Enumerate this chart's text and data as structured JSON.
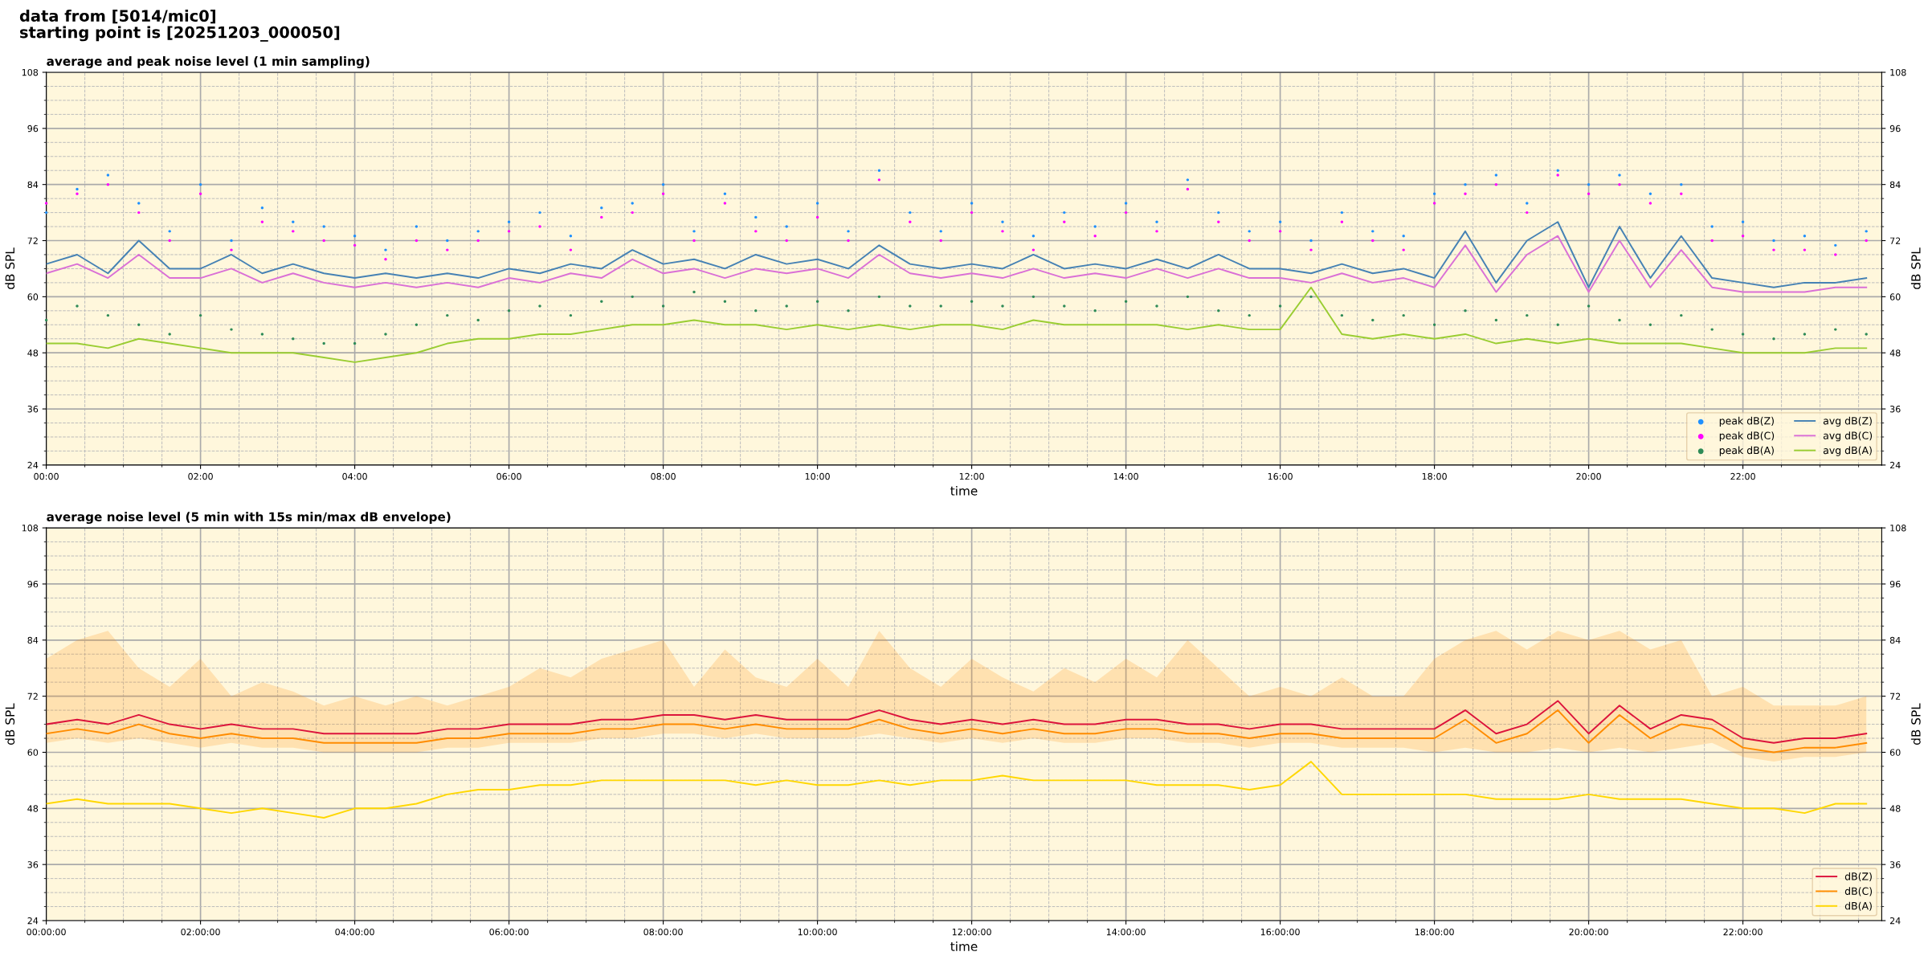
{
  "chart_data": [
    {
      "type": "line",
      "title": "average and peak noise level (1 min sampling)",
      "annotations": [
        "data from [5014/mic0]",
        "starting point is [20251203_000050]"
      ],
      "xlabel": "time",
      "ylabel": "dB SPL",
      "y2label": "dB SPL",
      "grid": true,
      "legend": "bottom right",
      "x": [
        0,
        0.4,
        0.8,
        1.2,
        1.6,
        2.0,
        2.4,
        2.8,
        3.2,
        3.6,
        4.0,
        4.4,
        4.8,
        5.2,
        5.6,
        6.0,
        6.4,
        6.8,
        7.2,
        7.6,
        8.0,
        8.4,
        8.8,
        9.2,
        9.6,
        10.0,
        10.4,
        10.8,
        11.2,
        11.6,
        12.0,
        12.4,
        12.8,
        13.2,
        13.6,
        14.0,
        14.4,
        14.8,
        15.2,
        15.6,
        16.0,
        16.4,
        16.8,
        17.2,
        17.6,
        18.0,
        18.4,
        18.8,
        19.2,
        19.6,
        20.0,
        20.4,
        20.8,
        21.2,
        21.6,
        22.0,
        22.4,
        22.8,
        23.2,
        23.6
      ],
      "xlim": [
        0,
        23.8
      ],
      "xticks": [
        {
          "value": 0,
          "label": "00:00"
        },
        {
          "value": 0.5,
          "label": null
        },
        {
          "value": 1,
          "label": null
        },
        {
          "value": 1.5,
          "label": null
        },
        {
          "value": 2,
          "label": "02:00"
        },
        {
          "value": 2.5,
          "label": null
        },
        {
          "value": 3,
          "label": null
        },
        {
          "value": 3.5,
          "label": null
        },
        {
          "value": 4,
          "label": "04:00"
        },
        {
          "value": 4.5,
          "label": null
        },
        {
          "value": 5,
          "label": null
        },
        {
          "value": 5.5,
          "label": null
        },
        {
          "value": 6,
          "label": "06:00"
        },
        {
          "value": 6.5,
          "label": null
        },
        {
          "value": 7,
          "label": null
        },
        {
          "value": 7.5,
          "label": null
        },
        {
          "value": 8,
          "label": "08:00"
        },
        {
          "value": 8.5,
          "label": null
        },
        {
          "value": 9,
          "label": null
        },
        {
          "value": 9.5,
          "label": null
        },
        {
          "value": 10,
          "label": "10:00"
        },
        {
          "value": 10.5,
          "label": null
        },
        {
          "value": 11,
          "label": null
        },
        {
          "value": 11.5,
          "label": null
        },
        {
          "value": 12,
          "label": "12:00"
        },
        {
          "value": 12.5,
          "label": null
        },
        {
          "value": 13,
          "label": null
        },
        {
          "value": 13.5,
          "label": null
        },
        {
          "value": 14,
          "label": "14:00"
        },
        {
          "value": 14.5,
          "label": null
        },
        {
          "value": 15,
          "label": null
        },
        {
          "value": 15.5,
          "label": null
        },
        {
          "value": 16,
          "label": "16:00"
        },
        {
          "value": 16.5,
          "label": null
        },
        {
          "value": 17,
          "label": null
        },
        {
          "value": 17.5,
          "label": null
        },
        {
          "value": 18,
          "label": "18:00"
        },
        {
          "value": 18.5,
          "label": null
        },
        {
          "value": 19,
          "label": null
        },
        {
          "value": 19.5,
          "label": null
        },
        {
          "value": 20,
          "label": "20:00"
        },
        {
          "value": 20.5,
          "label": null
        },
        {
          "value": 21,
          "label": null
        },
        {
          "value": 21.5,
          "label": null
        },
        {
          "value": 22,
          "label": "22:00"
        },
        {
          "value": 22.5,
          "label": null
        },
        {
          "value": 23,
          "label": null
        },
        {
          "value": 23.5,
          "label": null
        }
      ],
      "ylim": [
        24,
        108
      ],
      "yticks": [
        24,
        {
          "value": 27,
          "label": null
        },
        {
          "value": 30,
          "label": null
        },
        {
          "value": 33,
          "label": null
        },
        36,
        {
          "value": 39,
          "label": null
        },
        {
          "value": 42,
          "label": null
        },
        {
          "value": 45,
          "label": null
        },
        48,
        {
          "value": 51,
          "label": null
        },
        {
          "value": 54,
          "label": null
        },
        {
          "value": 57,
          "label": null
        },
        60,
        {
          "value": 63,
          "label": null
        },
        {
          "value": 66,
          "label": null
        },
        {
          "value": 69,
          "label": null
        },
        72,
        {
          "value": 75,
          "label": null
        },
        {
          "value": 78,
          "label": null
        },
        {
          "value": 81,
          "label": null
        },
        84,
        {
          "value": 87,
          "label": null
        },
        {
          "value": 90,
          "label": null
        },
        {
          "value": 93,
          "label": null
        },
        96,
        {
          "value": 99,
          "label": null
        },
        {
          "value": 102,
          "label": null
        },
        {
          "value": 105,
          "label": null
        },
        108
      ],
      "y2lim": [
        24,
        108
      ],
      "y2ticks": [
        24,
        {
          "value": 27,
          "label": null
        },
        {
          "value": 30,
          "label": null
        },
        {
          "value": 33,
          "label": null
        },
        36,
        {
          "value": 39,
          "label": null
        },
        {
          "value": 42,
          "label": null
        },
        {
          "value": 45,
          "label": null
        },
        48,
        {
          "value": 51,
          "label": null
        },
        {
          "value": 54,
          "label": null
        },
        {
          "value": 57,
          "label": null
        },
        60,
        {
          "value": 63,
          "label": null
        },
        {
          "value": 66,
          "label": null
        },
        {
          "value": 69,
          "label": null
        },
        72,
        {
          "value": 75,
          "label": null
        },
        {
          "value": 78,
          "label": null
        },
        {
          "value": 81,
          "label": null
        },
        84,
        {
          "value": 87,
          "label": null
        },
        {
          "value": 90,
          "label": null
        },
        {
          "value": 93,
          "label": null
        },
        96,
        {
          "value": 99,
          "label": null
        },
        {
          "value": 102,
          "label": null
        },
        {
          "value": 105,
          "label": null
        },
        108
      ],
      "series": [
        {
          "name": "peak dB(Z)",
          "type": "scatter",
          "marker": "circle",
          "color": "#1e90ff",
          "values": [
            78,
            83,
            86,
            80,
            74,
            84,
            72,
            79,
            76,
            75,
            73,
            70,
            75,
            72,
            74,
            76,
            78,
            73,
            79,
            80,
            84,
            74,
            82,
            77,
            75,
            80,
            74,
            87,
            78,
            74,
            80,
            76,
            73,
            78,
            75,
            80,
            76,
            85,
            78,
            74,
            76,
            72,
            78,
            74,
            73,
            82,
            84,
            86,
            80,
            87,
            84,
            86,
            82,
            84,
            75,
            76,
            72,
            73,
            71,
            74
          ]
        },
        {
          "name": "peak dB(C)",
          "type": "scatter",
          "marker": "circle",
          "color": "#ff00ff",
          "values": [
            80,
            82,
            84,
            78,
            72,
            82,
            70,
            76,
            74,
            72,
            71,
            68,
            72,
            70,
            72,
            74,
            75,
            70,
            77,
            78,
            82,
            72,
            80,
            74,
            72,
            77,
            72,
            85,
            76,
            72,
            78,
            74,
            70,
            76,
            73,
            78,
            74,
            83,
            76,
            72,
            74,
            70,
            76,
            72,
            70,
            80,
            82,
            84,
            78,
            86,
            82,
            84,
            80,
            82,
            72,
            73,
            70,
            70,
            69,
            72
          ]
        },
        {
          "name": "peak dB(A)",
          "type": "scatter",
          "marker": "circle",
          "color": "#2e8b57",
          "values": [
            55,
            58,
            56,
            54,
            52,
            56,
            53,
            52,
            51,
            50,
            50,
            52,
            54,
            56,
            55,
            57,
            58,
            56,
            59,
            60,
            58,
            61,
            59,
            57,
            58,
            59,
            57,
            60,
            58,
            58,
            59,
            58,
            60,
            58,
            57,
            59,
            58,
            60,
            57,
            56,
            58,
            60,
            56,
            55,
            56,
            54,
            57,
            55,
            56,
            54,
            58,
            55,
            54,
            56,
            53,
            52,
            51,
            52,
            53,
            52
          ]
        },
        {
          "name": "avg dB(Z)",
          "color": "#4682b4",
          "values": [
            67,
            69,
            65,
            72,
            66,
            66,
            69,
            65,
            67,
            65,
            64,
            65,
            64,
            65,
            64,
            66,
            65,
            67,
            66,
            70,
            67,
            68,
            66,
            69,
            67,
            68,
            66,
            71,
            67,
            66,
            67,
            66,
            69,
            66,
            67,
            66,
            68,
            66,
            69,
            66,
            66,
            65,
            67,
            65,
            66,
            64,
            74,
            63,
            72,
            76,
            62,
            75,
            64,
            73,
            64,
            63,
            62,
            63,
            63,
            64
          ]
        },
        {
          "name": "avg dB(C)",
          "color": "#da70d6",
          "values": [
            65,
            67,
            64,
            69,
            64,
            64,
            66,
            63,
            65,
            63,
            62,
            63,
            62,
            63,
            62,
            64,
            63,
            65,
            64,
            68,
            65,
            66,
            64,
            66,
            65,
            66,
            64,
            69,
            65,
            64,
            65,
            64,
            66,
            64,
            65,
            64,
            66,
            64,
            66,
            64,
            64,
            63,
            65,
            63,
            64,
            62,
            71,
            61,
            69,
            73,
            61,
            72,
            62,
            70,
            62,
            61,
            61,
            61,
            62,
            62
          ]
        },
        {
          "name": "avg dB(A)",
          "color": "#9acd32",
          "values": [
            50,
            50,
            49,
            51,
            50,
            49,
            48,
            48,
            48,
            47,
            46,
            47,
            48,
            50,
            51,
            51,
            52,
            52,
            53,
            54,
            54,
            55,
            54,
            54,
            53,
            54,
            53,
            54,
            53,
            54,
            54,
            53,
            55,
            54,
            54,
            54,
            54,
            53,
            54,
            53,
            53,
            62,
            52,
            51,
            52,
            51,
            52,
            50,
            51,
            50,
            51,
            50,
            50,
            50,
            49,
            48,
            48,
            48,
            49,
            49
          ]
        }
      ]
    },
    {
      "type": "line",
      "title": "average noise level (5 min with 15s min/max dB envelope)",
      "xlabel": "time",
      "ylabel": "dB SPL",
      "y2label": "dB SPL",
      "grid": true,
      "legend": "bottom right",
      "x": [
        0,
        0.4,
        0.8,
        1.2,
        1.6,
        2.0,
        2.4,
        2.8,
        3.2,
        3.6,
        4.0,
        4.4,
        4.8,
        5.2,
        5.6,
        6.0,
        6.4,
        6.8,
        7.2,
        7.6,
        8.0,
        8.4,
        8.8,
        9.2,
        9.6,
        10.0,
        10.4,
        10.8,
        11.2,
        11.6,
        12.0,
        12.4,
        12.8,
        13.2,
        13.6,
        14.0,
        14.4,
        14.8,
        15.2,
        15.6,
        16.0,
        16.4,
        16.8,
        17.2,
        17.6,
        18.0,
        18.4,
        18.8,
        19.2,
        19.6,
        20.0,
        20.4,
        20.8,
        21.2,
        21.6,
        22.0,
        22.4,
        22.8,
        23.2,
        23.6
      ],
      "xlim": [
        0,
        23.8
      ],
      "xticks": [
        {
          "value": 0,
          "label": "00:00:00"
        },
        {
          "value": 0.5,
          "label": null
        },
        {
          "value": 1,
          "label": null
        },
        {
          "value": 1.5,
          "label": null
        },
        {
          "value": 2,
          "label": "02:00:00"
        },
        {
          "value": 2.5,
          "label": null
        },
        {
          "value": 3,
          "label": null
        },
        {
          "value": 3.5,
          "label": null
        },
        {
          "value": 4,
          "label": "04:00:00"
        },
        {
          "value": 4.5,
          "label": null
        },
        {
          "value": 5,
          "label": null
        },
        {
          "value": 5.5,
          "label": null
        },
        {
          "value": 6,
          "label": "06:00:00"
        },
        {
          "value": 6.5,
          "label": null
        },
        {
          "value": 7,
          "label": null
        },
        {
          "value": 7.5,
          "label": null
        },
        {
          "value": 8,
          "label": "08:00:00"
        },
        {
          "value": 8.5,
          "label": null
        },
        {
          "value": 9,
          "label": null
        },
        {
          "value": 9.5,
          "label": null
        },
        {
          "value": 10,
          "label": "10:00:00"
        },
        {
          "value": 10.5,
          "label": null
        },
        {
          "value": 11,
          "label": null
        },
        {
          "value": 11.5,
          "label": null
        },
        {
          "value": 12,
          "label": "12:00:00"
        },
        {
          "value": 12.5,
          "label": null
        },
        {
          "value": 13,
          "label": null
        },
        {
          "value": 13.5,
          "label": null
        },
        {
          "value": 14,
          "label": "14:00:00"
        },
        {
          "value": 14.5,
          "label": null
        },
        {
          "value": 15,
          "label": null
        },
        {
          "value": 15.5,
          "label": null
        },
        {
          "value": 16,
          "label": "16:00:00"
        },
        {
          "value": 16.5,
          "label": null
        },
        {
          "value": 17,
          "label": null
        },
        {
          "value": 17.5,
          "label": null
        },
        {
          "value": 18,
          "label": "18:00:00"
        },
        {
          "value": 18.5,
          "label": null
        },
        {
          "value": 19,
          "label": null
        },
        {
          "value": 19.5,
          "label": null
        },
        {
          "value": 20,
          "label": "20:00:00"
        },
        {
          "value": 20.5,
          "label": null
        },
        {
          "value": 21,
          "label": null
        },
        {
          "value": 21.5,
          "label": null
        },
        {
          "value": 22,
          "label": "22:00:00"
        },
        {
          "value": 22.5,
          "label": null
        },
        {
          "value": 23,
          "label": null
        },
        {
          "value": 23.5,
          "label": null
        }
      ],
      "ylim": [
        24,
        108
      ],
      "yticks": [
        24,
        {
          "value": 27,
          "label": null
        },
        {
          "value": 30,
          "label": null
        },
        {
          "value": 33,
          "label": null
        },
        36,
        {
          "value": 39,
          "label": null
        },
        {
          "value": 42,
          "label": null
        },
        {
          "value": 45,
          "label": null
        },
        48,
        {
          "value": 51,
          "label": null
        },
        {
          "value": 54,
          "label": null
        },
        {
          "value": 57,
          "label": null
        },
        60,
        {
          "value": 63,
          "label": null
        },
        {
          "value": 66,
          "label": null
        },
        {
          "value": 69,
          "label": null
        },
        72,
        {
          "value": 75,
          "label": null
        },
        {
          "value": 78,
          "label": null
        },
        {
          "value": 81,
          "label": null
        },
        84,
        {
          "value": 87,
          "label": null
        },
        {
          "value": 90,
          "label": null
        },
        {
          "value": 93,
          "label": null
        },
        96,
        {
          "value": 99,
          "label": null
        },
        {
          "value": 102,
          "label": null
        },
        {
          "value": 105,
          "label": null
        },
        108
      ],
      "y2lim": [
        24,
        108
      ],
      "y2ticks": [
        24,
        {
          "value": 27,
          "label": null
        },
        {
          "value": 30,
          "label": null
        },
        {
          "value": 33,
          "label": null
        },
        36,
        {
          "value": 39,
          "label": null
        },
        {
          "value": 42,
          "label": null
        },
        {
          "value": 45,
          "label": null
        },
        48,
        {
          "value": 51,
          "label": null
        },
        {
          "value": 54,
          "label": null
        },
        {
          "value": 57,
          "label": null
        },
        60,
        {
          "value": 63,
          "label": null
        },
        {
          "value": 66,
          "label": null
        },
        {
          "value": 69,
          "label": null
        },
        72,
        {
          "value": 75,
          "label": null
        },
        {
          "value": 78,
          "label": null
        },
        {
          "value": 81,
          "label": null
        },
        84,
        {
          "value": 87,
          "label": null
        },
        {
          "value": 90,
          "label": null
        },
        {
          "value": 93,
          "label": null
        },
        96,
        {
          "value": 99,
          "label": null
        },
        {
          "value": 102,
          "label": null
        },
        {
          "value": 105,
          "label": null
        },
        108
      ],
      "series": [
        {
          "name": "dB(Z)",
          "color": "#dc143c",
          "values": [
            66,
            67,
            66,
            68,
            66,
            65,
            66,
            65,
            65,
            64,
            64,
            64,
            64,
            65,
            65,
            66,
            66,
            66,
            67,
            67,
            68,
            68,
            67,
            68,
            67,
            67,
            67,
            69,
            67,
            66,
            67,
            66,
            67,
            66,
            66,
            67,
            67,
            66,
            66,
            65,
            66,
            66,
            65,
            65,
            65,
            65,
            69,
            64,
            66,
            71,
            64,
            70,
            65,
            68,
            67,
            63,
            62,
            63,
            63,
            64
          ]
        },
        {
          "name": "dB(C)",
          "color": "#ff8c00",
          "values": [
            64,
            65,
            64,
            66,
            64,
            63,
            64,
            63,
            63,
            62,
            62,
            62,
            62,
            63,
            63,
            64,
            64,
            64,
            65,
            65,
            66,
            66,
            65,
            66,
            65,
            65,
            65,
            67,
            65,
            64,
            65,
            64,
            65,
            64,
            64,
            65,
            65,
            64,
            64,
            63,
            64,
            64,
            63,
            63,
            63,
            63,
            67,
            62,
            64,
            69,
            62,
            68,
            63,
            66,
            65,
            61,
            60,
            61,
            61,
            62
          ],
          "lower": [
            62,
            63,
            62,
            63,
            62,
            61,
            62,
            61,
            61,
            60,
            60,
            60,
            60,
            61,
            61,
            62,
            62,
            62,
            63,
            63,
            64,
            64,
            63,
            64,
            63,
            63,
            63,
            64,
            63,
            62,
            63,
            62,
            63,
            62,
            62,
            63,
            63,
            62,
            62,
            61,
            62,
            62,
            61,
            61,
            61,
            60,
            61,
            60,
            60,
            61,
            60,
            61,
            60,
            61,
            62,
            59,
            58,
            59,
            59,
            60
          ],
          "upper": [
            80,
            84,
            86,
            78,
            74,
            80,
            72,
            75,
            73,
            70,
            72,
            70,
            72,
            70,
            72,
            74,
            78,
            76,
            80,
            82,
            84,
            74,
            82,
            76,
            74,
            80,
            74,
            86,
            78,
            74,
            80,
            76,
            73,
            78,
            75,
            80,
            76,
            84,
            78,
            72,
            74,
            72,
            76,
            72,
            72,
            80,
            84,
            86,
            82,
            86,
            84,
            86,
            82,
            84,
            72,
            74,
            70,
            70,
            70,
            72
          ]
        },
        {
          "name": "dB(A)",
          "color": "#ffd700",
          "values": [
            49,
            50,
            49,
            49,
            49,
            48,
            47,
            48,
            47,
            46,
            48,
            48,
            49,
            51,
            52,
            52,
            53,
            53,
            54,
            54,
            54,
            54,
            54,
            53,
            54,
            53,
            53,
            54,
            53,
            54,
            54,
            55,
            54,
            54,
            54,
            54,
            53,
            53,
            53,
            52,
            53,
            58,
            51,
            51,
            51,
            51,
            51,
            50,
            50,
            50,
            51,
            50,
            50,
            50,
            49,
            48,
            48,
            47,
            49,
            49
          ]
        }
      ]
    }
  ]
}
